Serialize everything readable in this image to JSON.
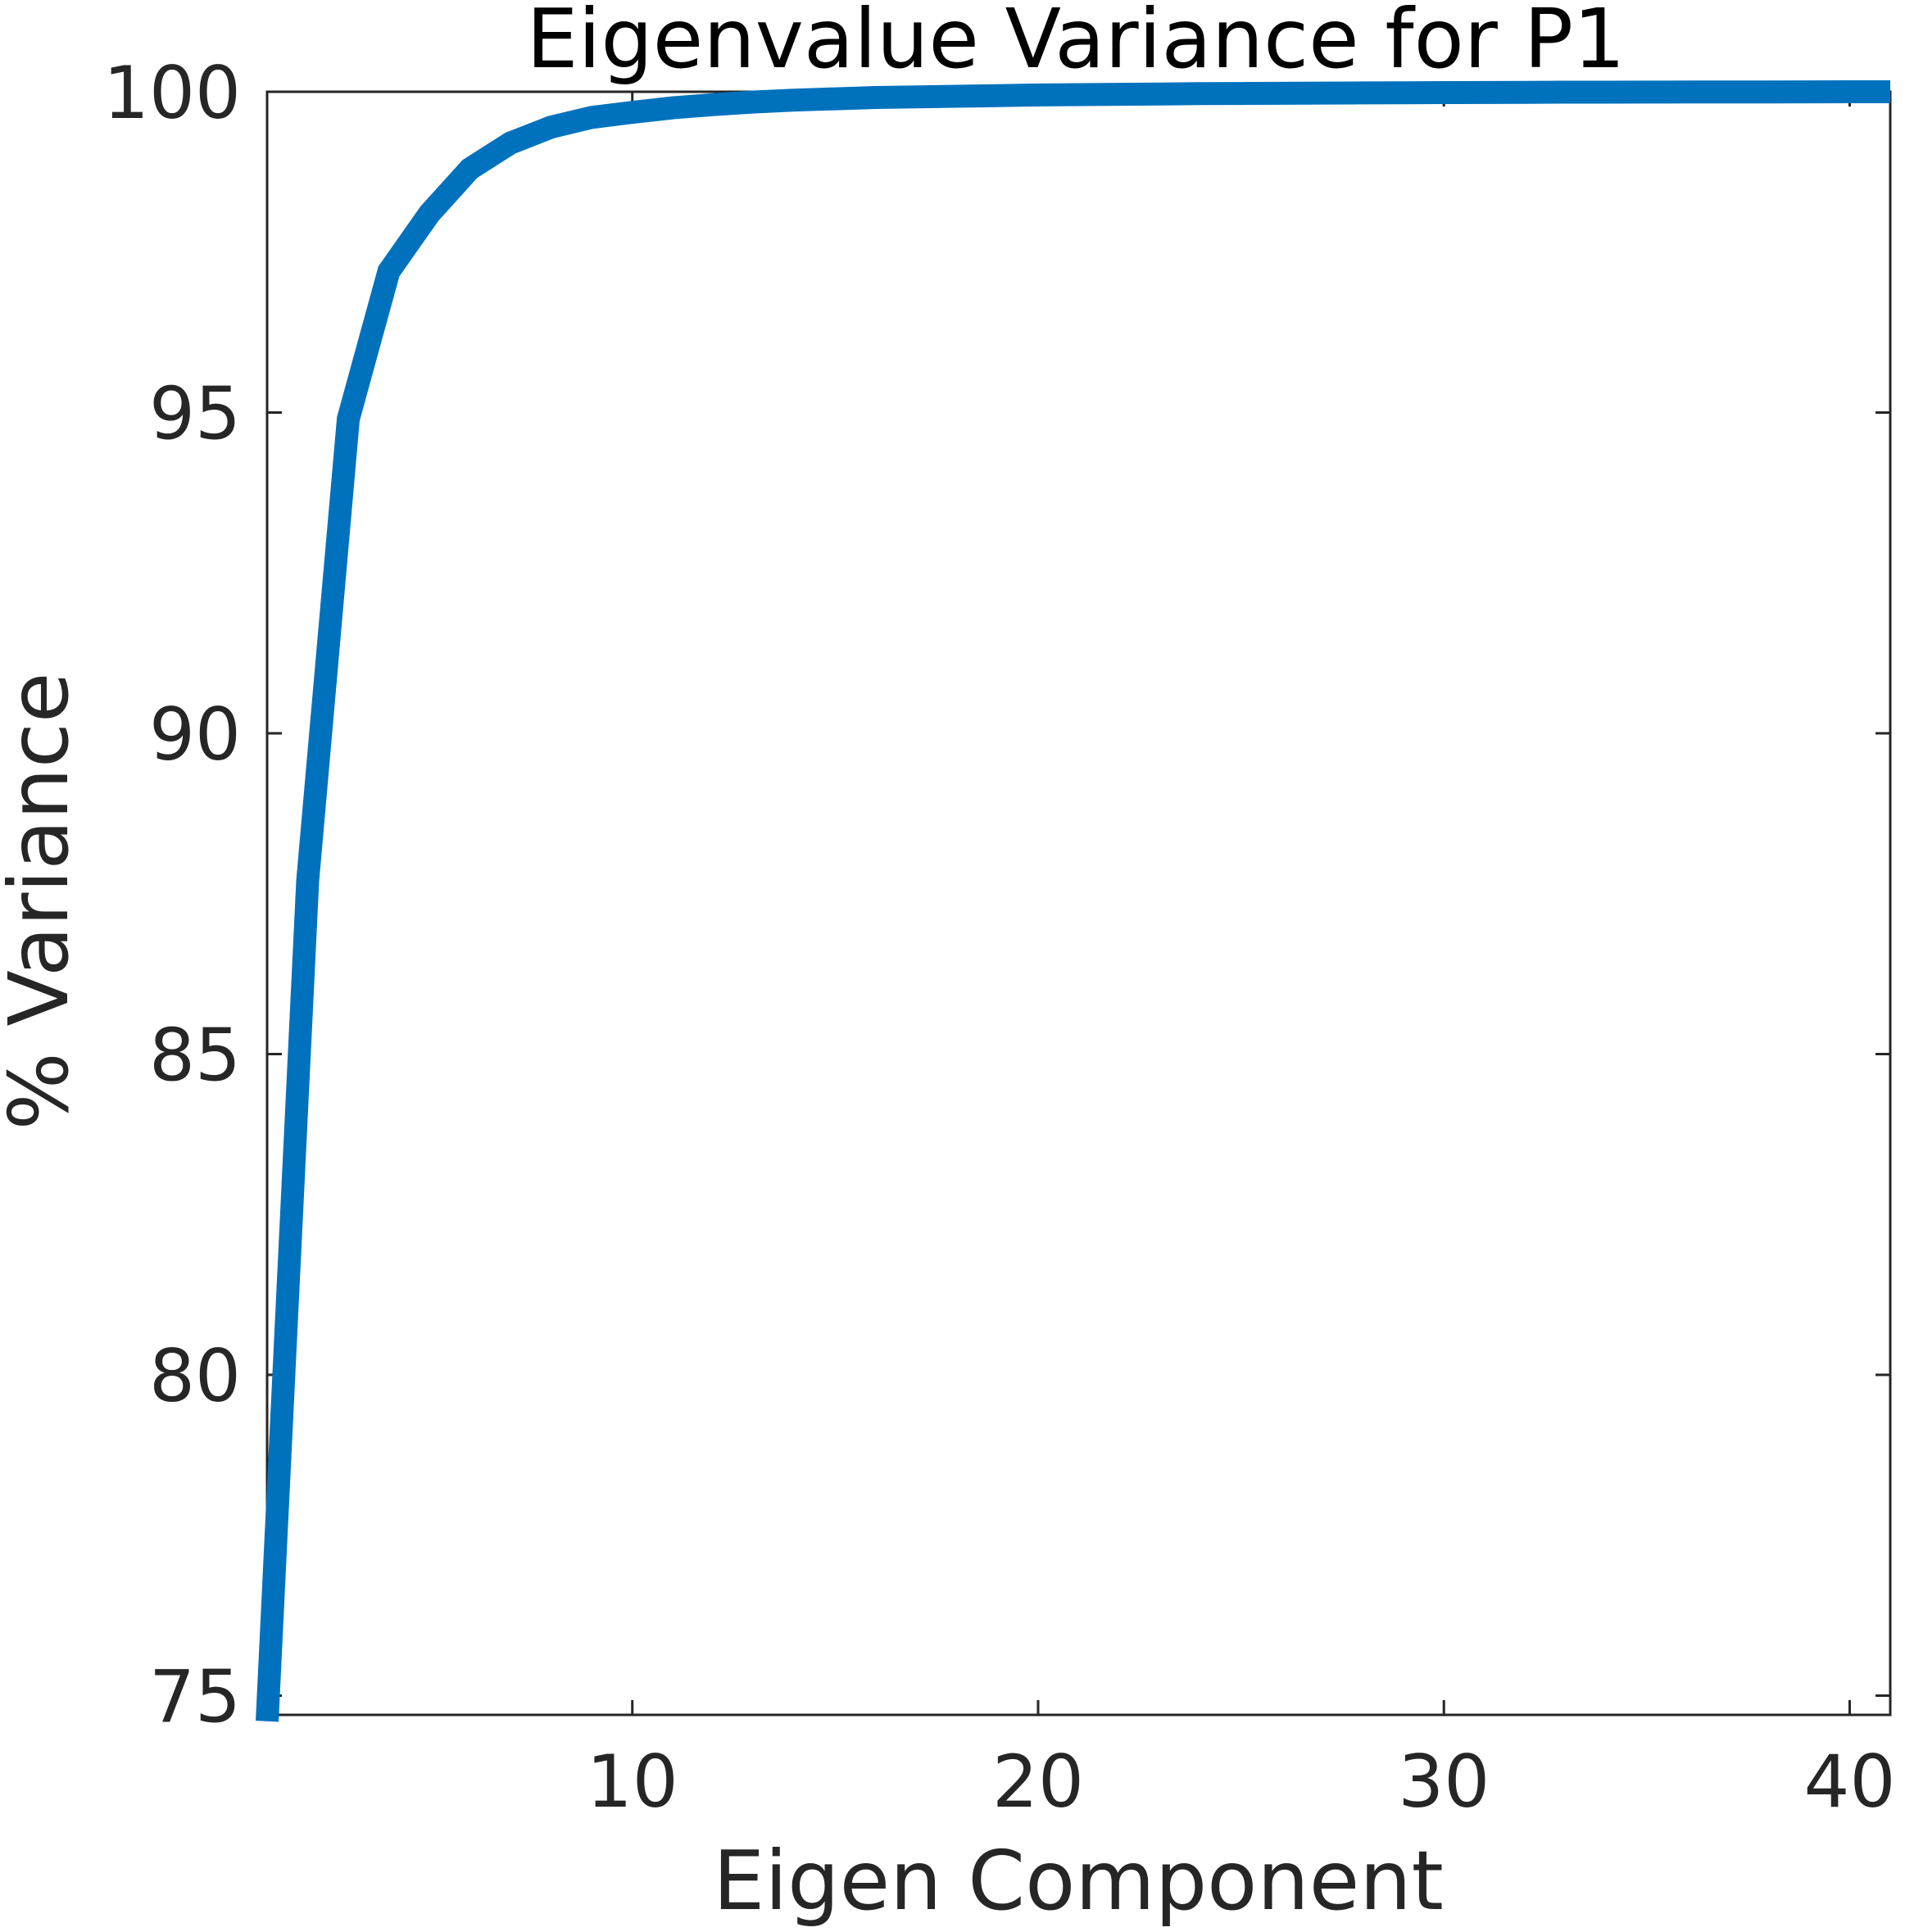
{
  "chart_data": {
    "type": "line",
    "title": "Eigenvalue Variance for P1",
    "xlabel": "Eigen Component",
    "ylabel": "% Variance",
    "xlim": [
      1,
      41
    ],
    "ylim": [
      74.7,
      100
    ],
    "xticks": [
      10,
      20,
      30,
      40
    ],
    "yticks": [
      75,
      80,
      85,
      90,
      95,
      100
    ],
    "grid": false,
    "legend": "none",
    "colors": {
      "line": "#0072bd",
      "axes": "#262626",
      "text": "#262626",
      "title": "#000000"
    },
    "series": [
      {
        "x": [
          1,
          2,
          3,
          4,
          5,
          6,
          7,
          8,
          9,
          10,
          11,
          12,
          13,
          14,
          15,
          16,
          17,
          18,
          19,
          20,
          21,
          22,
          23,
          24,
          25,
          26,
          27,
          28,
          29,
          30,
          31,
          32,
          33,
          34,
          35,
          36,
          37,
          38,
          39,
          40,
          41
        ],
        "values": [
          74.6,
          87.7,
          94.9,
          97.2,
          98.1,
          98.8,
          99.2,
          99.45,
          99.6,
          99.68,
          99.75,
          99.8,
          99.84,
          99.87,
          99.89,
          99.91,
          99.92,
          99.93,
          99.94,
          99.95,
          99.955,
          99.96,
          99.965,
          99.97,
          99.973,
          99.976,
          99.979,
          99.982,
          99.985,
          99.987,
          99.989,
          99.991,
          99.993,
          99.994,
          99.995,
          99.996,
          99.997,
          99.998,
          99.999,
          100,
          100
        ]
      }
    ]
  }
}
